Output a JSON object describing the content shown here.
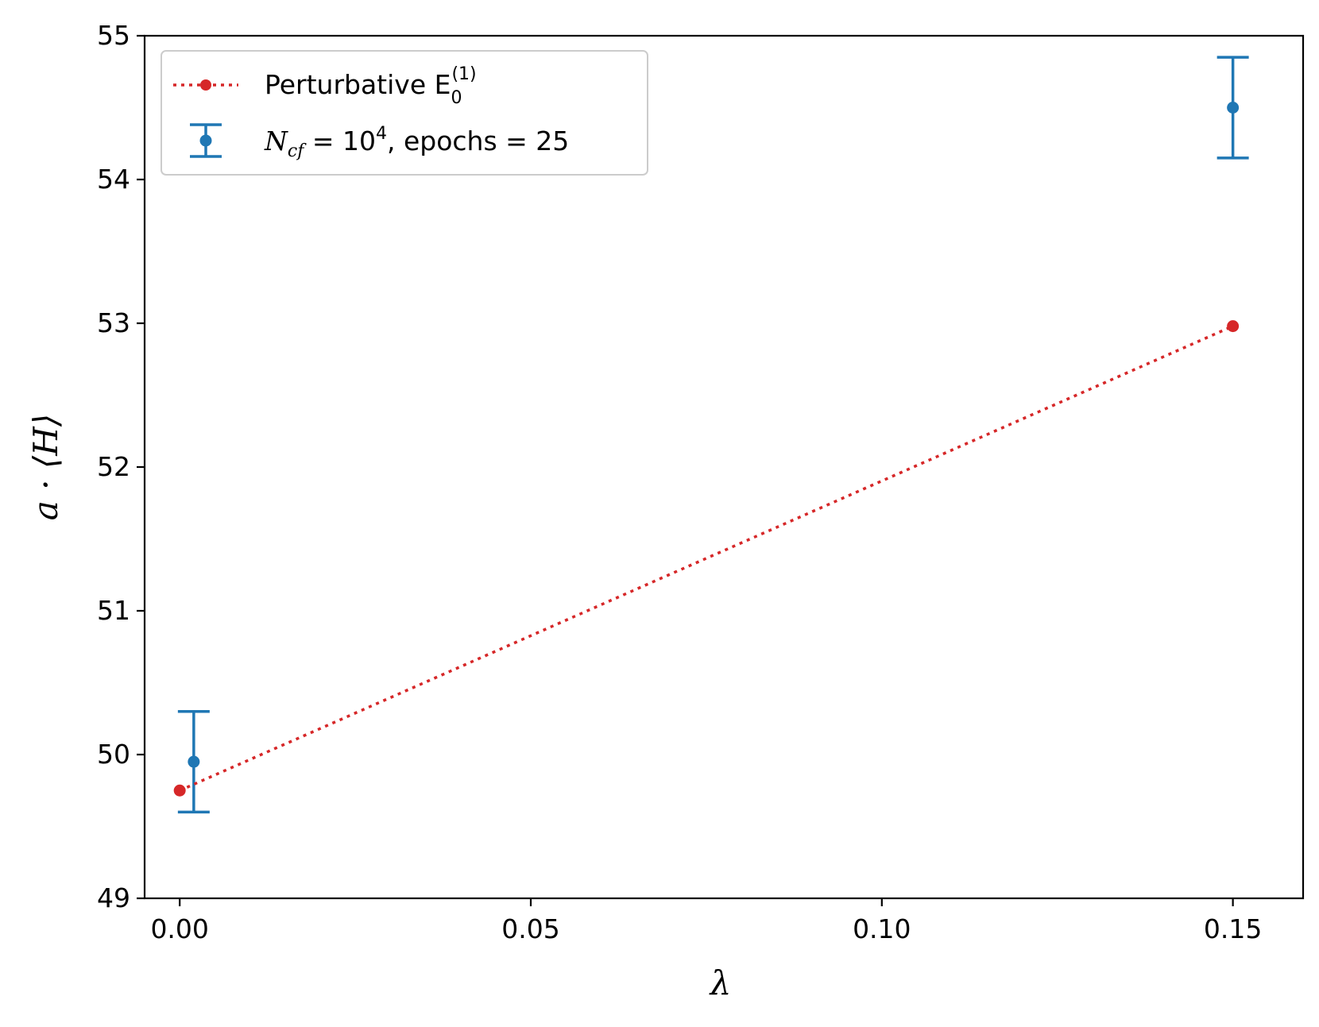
{
  "chart_data": {
    "type": "scatter",
    "xlabel": "λ",
    "ylabel": "a · ⟨H⟩",
    "xlim": [
      -0.005,
      0.16
    ],
    "ylim": [
      49,
      55
    ],
    "x_ticks": [
      0.0,
      0.05,
      0.1,
      0.15
    ],
    "x_tick_labels": [
      "0.00",
      "0.05",
      "0.10",
      "0.15"
    ],
    "y_ticks": [
      49,
      50,
      51,
      52,
      53,
      54,
      55
    ],
    "y_tick_labels": [
      "49",
      "50",
      "51",
      "52",
      "53",
      "54",
      "55"
    ],
    "grid": false,
    "legend_position": "top-left",
    "series": [
      {
        "name": "Perturbative E0(1)",
        "legend_main": "Perturbative E",
        "legend_sub": "0",
        "legend_sup": "(1)",
        "style": "dotted-line-with-markers",
        "color": "#d62728",
        "points": [
          {
            "x": 0.0,
            "y": 49.75
          },
          {
            "x": 0.15,
            "y": 52.98
          }
        ]
      },
      {
        "name": "Ncf = 10^4, epochs = 25",
        "legend_N": "N",
        "legend_sub": "cf",
        "legend_eq": " = 10",
        "legend_sup": "4",
        "legend_rest": ", epochs = 25",
        "style": "errorbar",
        "color": "#1f77b4",
        "points": [
          {
            "x": 0.002,
            "y": 49.95,
            "yerr": 0.35
          },
          {
            "x": 0.15,
            "y": 54.5,
            "yerr": 0.35
          }
        ]
      }
    ]
  }
}
